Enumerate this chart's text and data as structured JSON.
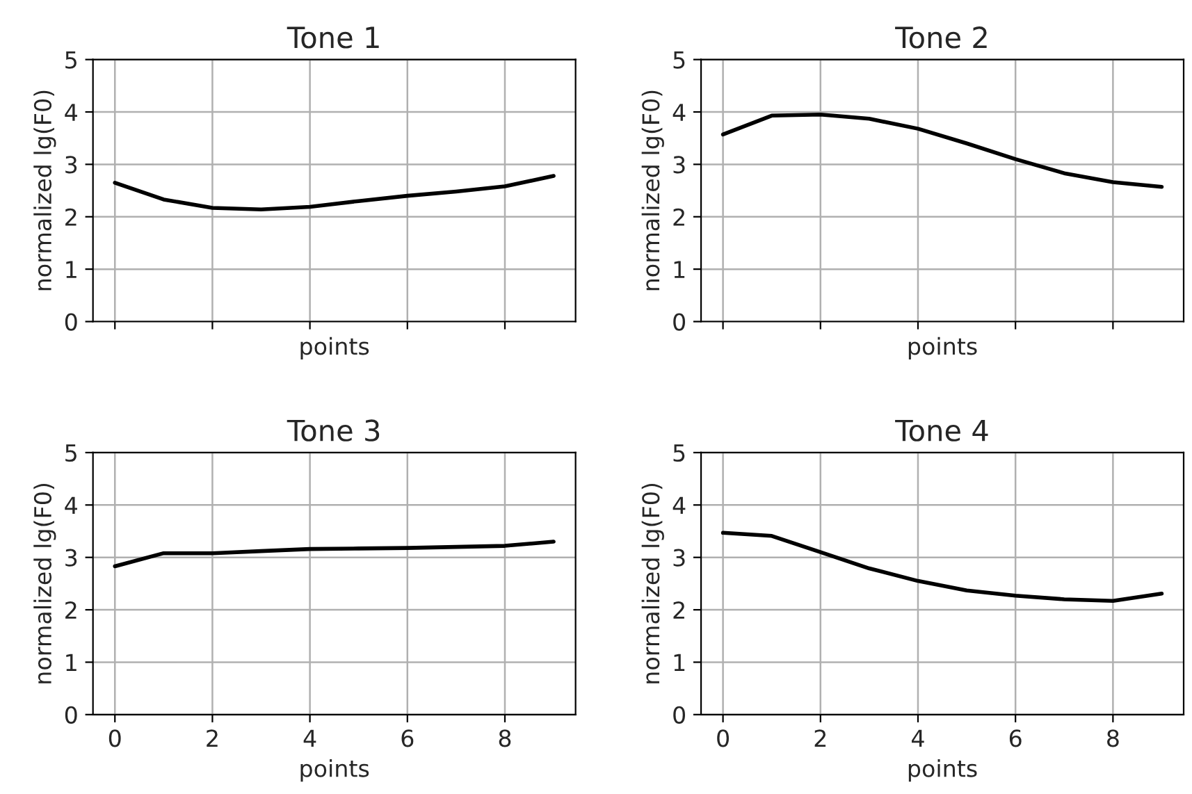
{
  "chart_data": [
    {
      "type": "line",
      "title": "Tone 1",
      "xlabel": "points",
      "ylabel": "normalized lg(F0)",
      "x": [
        0,
        1,
        2,
        3,
        4,
        5,
        6,
        7,
        8,
        9
      ],
      "series": [
        {
          "color": "#000000",
          "values": [
            2.65,
            2.33,
            2.17,
            2.14,
            2.19,
            2.3,
            2.4,
            2.48,
            2.58,
            2.78
          ]
        }
      ],
      "xlim": [
        -0.45,
        9.45
      ],
      "xticks": [
        0,
        2,
        4,
        6,
        8
      ],
      "ylim": [
        0,
        5
      ],
      "yticks": [
        0,
        1,
        2,
        3,
        4,
        5
      ],
      "grid": true,
      "tick_labels": "y"
    },
    {
      "type": "line",
      "title": "Tone 2",
      "xlabel": "points",
      "ylabel": "normalized lg(F0)",
      "x": [
        0,
        1,
        2,
        3,
        4,
        5,
        6,
        7,
        8,
        9
      ],
      "series": [
        {
          "color": "#000000",
          "values": [
            3.57,
            3.93,
            3.95,
            3.87,
            3.68,
            3.4,
            3.1,
            2.83,
            2.66,
            2.57
          ]
        }
      ],
      "xlim": [
        -0.45,
        9.45
      ],
      "xticks": [
        0,
        2,
        4,
        6,
        8
      ],
      "ylim": [
        0,
        5
      ],
      "yticks": [
        0,
        1,
        2,
        3,
        4,
        5
      ],
      "grid": true,
      "tick_labels": "y"
    },
    {
      "type": "line",
      "title": "Tone 3",
      "xlabel": "points",
      "ylabel": "normalized lg(F0)",
      "x": [
        0,
        1,
        2,
        3,
        4,
        5,
        6,
        7,
        8,
        9
      ],
      "series": [
        {
          "color": "#000000",
          "values": [
            2.83,
            3.08,
            3.08,
            3.12,
            3.16,
            3.17,
            3.18,
            3.2,
            3.22,
            3.3
          ]
        }
      ],
      "xlim": [
        -0.45,
        9.45
      ],
      "xticks": [
        0,
        2,
        4,
        6,
        8
      ],
      "ylim": [
        0,
        5
      ],
      "yticks": [
        0,
        1,
        2,
        3,
        4,
        5
      ],
      "grid": true
    },
    {
      "type": "line",
      "title": "Tone 4",
      "xlabel": "points",
      "ylabel": "normalized lg(F0)",
      "x": [
        0,
        1,
        2,
        3,
        4,
        5,
        6,
        7,
        8,
        9
      ],
      "series": [
        {
          "color": "#000000",
          "values": [
            3.47,
            3.41,
            3.1,
            2.79,
            2.55,
            2.37,
            2.27,
            2.2,
            2.17,
            2.31
          ]
        }
      ],
      "xlim": [
        -0.45,
        9.45
      ],
      "xticks": [
        0,
        2,
        4,
        6,
        8
      ],
      "ylim": [
        0,
        5
      ],
      "yticks": [
        0,
        1,
        2,
        3,
        4,
        5
      ],
      "grid": true
    }
  ]
}
